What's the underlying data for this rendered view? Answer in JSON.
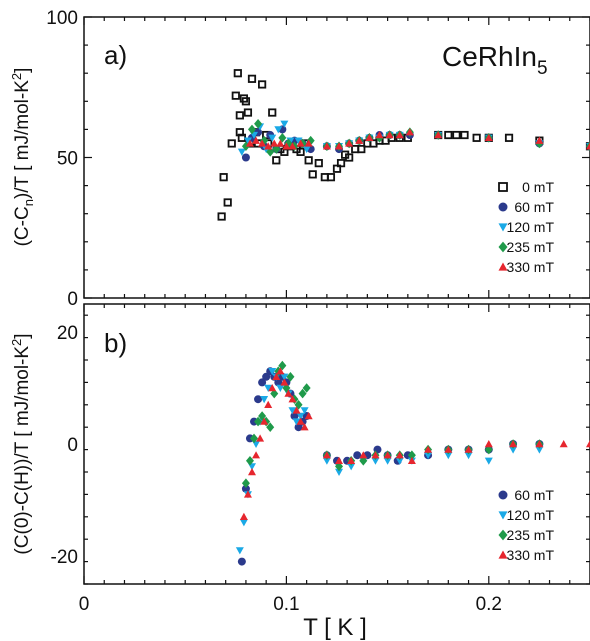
{
  "figure": {
    "compound": "CeRhIn",
    "compound_sub": "5",
    "xlabel": "T [ K ]",
    "x_ticks": [
      "0",
      "0.1",
      "0.2"
    ]
  },
  "chart_data": [
    {
      "type": "scatter",
      "panel": "a)",
      "ylabel": "(C-C",
      "ylabel_sub": "n",
      "ylabel_rest": ")/T [ mJ/mol-K",
      "ylabel_sup": "2",
      "ylabel_end": "]",
      "xlim": [
        0,
        0.25
      ],
      "ylim": [
        0,
        100
      ],
      "yticks": [
        0,
        50,
        100
      ],
      "legend_position": "bottom-right",
      "series": [
        {
          "name": "0 mT",
          "marker": "open-square",
          "color": "#111111",
          "x": [
            0.068,
            0.069,
            0.071,
            0.073,
            0.075,
            0.076,
            0.077,
            0.077,
            0.078,
            0.079,
            0.08,
            0.081,
            0.082,
            0.083,
            0.085,
            0.086,
            0.088,
            0.09,
            0.091,
            0.093,
            0.095,
            0.097,
            0.099,
            0.101,
            0.103,
            0.105,
            0.107,
            0.109,
            0.111,
            0.113,
            0.116,
            0.119,
            0.122,
            0.125,
            0.127,
            0.129,
            0.131,
            0.134,
            0.137,
            0.14,
            0.143,
            0.146,
            0.149,
            0.152,
            0.156,
            0.16,
            0.175,
            0.18,
            0.184,
            0.188,
            0.194,
            0.2,
            0.21,
            0.225,
            0.25
          ],
          "y": [
            29,
            43,
            34,
            55,
            72,
            80,
            65,
            59,
            57,
            71,
            70,
            66,
            55,
            78,
            59,
            55,
            76,
            58,
            55,
            66,
            49,
            53,
            52,
            54,
            55,
            53,
            52,
            55,
            49,
            44,
            48,
            43,
            43,
            46,
            48,
            51,
            50,
            53,
            53,
            55,
            55,
            56,
            56,
            57,
            57,
            57,
            58,
            58,
            58,
            58,
            57,
            57,
            57,
            56,
            54
          ]
        },
        {
          "name": "60 mT",
          "marker": "circle",
          "color": "#2b3a8c",
          "x": [
            0.08,
            0.083,
            0.086,
            0.089,
            0.092,
            0.095,
            0.098,
            0.101,
            0.104,
            0.108,
            0.112,
            0.12,
            0.126,
            0.131,
            0.136,
            0.141,
            0.146,
            0.151,
            0.156,
            0.161,
            0.175,
            0.2,
            0.225,
            0.25
          ],
          "y": [
            50,
            57,
            59,
            54,
            58,
            53,
            60,
            55,
            56,
            55,
            53,
            54,
            53,
            55,
            56,
            57,
            58,
            58,
            58,
            58,
            58,
            57,
            55,
            54
          ]
        },
        {
          "name": "120 mT",
          "marker": "triangle-down",
          "color": "#1aa9e6",
          "x": [
            0.078,
            0.081,
            0.084,
            0.087,
            0.09,
            0.093,
            0.096,
            0.099,
            0.102,
            0.106,
            0.11,
            0.12,
            0.126,
            0.131,
            0.136,
            0.141,
            0.146,
            0.151,
            0.156,
            0.175,
            0.2,
            0.225,
            0.25
          ],
          "y": [
            52,
            56,
            58,
            61,
            53,
            57,
            60,
            62,
            56,
            56,
            53,
            54,
            54,
            55,
            56,
            57,
            57,
            58,
            58,
            58,
            57,
            55,
            54
          ]
        },
        {
          "name": "235 mT",
          "marker": "diamond",
          "color": "#1f9a4a",
          "x": [
            0.08,
            0.083,
            0.086,
            0.089,
            0.092,
            0.095,
            0.098,
            0.101,
            0.104,
            0.108,
            0.112,
            0.12,
            0.126,
            0.131,
            0.136,
            0.141,
            0.146,
            0.151,
            0.156,
            0.161,
            0.175,
            0.2,
            0.225,
            0.25
          ],
          "y": [
            54,
            60,
            62,
            56,
            52,
            53,
            57,
            55,
            54,
            55,
            56,
            54,
            54,
            55,
            56,
            57,
            57,
            58,
            58,
            59,
            58,
            57,
            55,
            54
          ]
        },
        {
          "name": "330 mT",
          "marker": "triangle-up",
          "color": "#e6262e",
          "x": [
            0.082,
            0.085,
            0.088,
            0.091,
            0.094,
            0.097,
            0.1,
            0.103,
            0.107,
            0.111,
            0.12,
            0.126,
            0.131,
            0.136,
            0.141,
            0.146,
            0.151,
            0.156,
            0.161,
            0.175,
            0.2,
            0.225,
            0.25
          ],
          "y": [
            55,
            56,
            55,
            54,
            55,
            55,
            54,
            54,
            55,
            55,
            54,
            54,
            55,
            56,
            57,
            58,
            58,
            58,
            59,
            58,
            57,
            56,
            54
          ]
        }
      ]
    },
    {
      "type": "scatter",
      "panel": "b)",
      "ylabel": "(C(0)-C(H))/T [ mJ/mol-K",
      "ylabel_sup": "2",
      "ylabel_end": "]",
      "xlim": [
        0,
        0.25
      ],
      "ylim": [
        -25,
        25
      ],
      "yticks": [
        -20,
        0,
        20
      ],
      "legend_position": "bottom-right",
      "series": [
        {
          "name": "60 mT",
          "marker": "circle",
          "color": "#2b3a8c",
          "x": [
            0.078,
            0.08,
            0.082,
            0.084,
            0.086,
            0.088,
            0.09,
            0.092,
            0.094,
            0.096,
            0.098,
            0.1,
            0.102,
            0.104,
            0.106,
            0.108,
            0.11,
            0.12,
            0.125,
            0.13,
            0.135,
            0.14,
            0.145,
            0.15,
            0.155,
            0.16,
            0.17,
            0.18,
            0.19,
            0.2,
            0.212,
            0.225
          ],
          "y": [
            -21,
            -8,
            1,
            4,
            8,
            11,
            12,
            13,
            12,
            11,
            12,
            11,
            9,
            5,
            3,
            4,
            5,
            -2,
            -3,
            -3,
            -2,
            -2,
            -1,
            -2,
            -3,
            -2,
            -2,
            -1,
            -1,
            -1,
            0,
            0
          ]
        },
        {
          "name": "120 mT",
          "marker": "triangle-down",
          "color": "#1aa9e6",
          "x": [
            0.077,
            0.079,
            0.081,
            0.083,
            0.085,
            0.087,
            0.089,
            0.091,
            0.093,
            0.095,
            0.097,
            0.099,
            0.101,
            0.103,
            0.105,
            0.107,
            0.109,
            0.12,
            0.126,
            0.132,
            0.138,
            0.144,
            0.15,
            0.156,
            0.162,
            0.17,
            0.18,
            0.19,
            0.2,
            0.212,
            0.225
          ],
          "y": [
            -19,
            -14,
            -9,
            -4,
            0,
            4,
            8,
            10,
            13,
            12,
            10,
            12,
            9,
            6,
            4,
            5,
            6,
            -3,
            -5,
            -4,
            -3,
            -3,
            -3,
            -3,
            -3,
            -2,
            -2,
            -2,
            -3,
            -1,
            -1
          ]
        },
        {
          "name": "235 mT",
          "marker": "diamond",
          "color": "#1f9a4a",
          "x": [
            0.08,
            0.082,
            0.084,
            0.086,
            0.088,
            0.09,
            0.092,
            0.094,
            0.096,
            0.098,
            0.1,
            0.102,
            0.104,
            0.106,
            0.108,
            0.11,
            0.12,
            0.126,
            0.132,
            0.138,
            0.144,
            0.15,
            0.156,
            0.162,
            0.17,
            0.18,
            0.19,
            0.2,
            0.212,
            0.225
          ],
          "y": [
            -7,
            -3,
            1,
            4,
            5,
            4,
            3,
            9,
            13,
            14,
            10,
            12,
            8,
            7,
            9,
            10,
            -2,
            -4,
            -3,
            -3,
            -2,
            -2,
            -2,
            -2,
            -1,
            -1,
            -1,
            -1,
            0,
            0
          ]
        },
        {
          "name": "330 mT",
          "marker": "triangle-up",
          "color": "#e6262e",
          "x": [
            0.079,
            0.081,
            0.083,
            0.085,
            0.087,
            0.089,
            0.091,
            0.093,
            0.095,
            0.097,
            0.099,
            0.101,
            0.103,
            0.105,
            0.107,
            0.109,
            0.111,
            0.12,
            0.126,
            0.132,
            0.138,
            0.144,
            0.15,
            0.156,
            0.162,
            0.17,
            0.18,
            0.19,
            0.2,
            0.212,
            0.225,
            0.237,
            0.25
          ],
          "y": [
            -13,
            -9,
            -5,
            -2,
            1,
            4,
            7,
            10,
            12,
            13,
            11,
            9,
            8,
            6,
            4,
            3,
            5,
            -2,
            -3,
            -3,
            -2,
            -2,
            -2,
            -2,
            -3,
            -1,
            -1,
            -1,
            0,
            0,
            0,
            0,
            0
          ]
        }
      ]
    }
  ]
}
